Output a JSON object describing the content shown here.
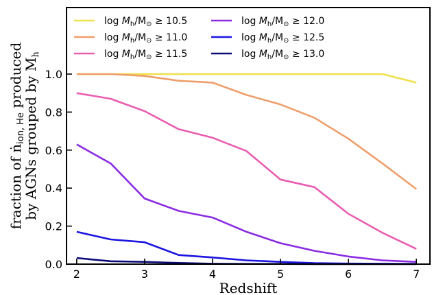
{
  "chart_data": {
    "type": "line",
    "xlabel": "Redshift",
    "ylabel_line1": "fraction of ṅ",
    "ylabel_sub": "ion, He",
    "ylabel_line1_end": " produced",
    "ylabel_line2": "by AGNs grouped by M",
    "ylabel_line2_sub": "h",
    "xlim": [
      1.85,
      7.2
    ],
    "ylim": [
      0,
      1.35
    ],
    "xticks": [
      2,
      3,
      4,
      5,
      6,
      7
    ],
    "xtick_labels": [
      "2",
      "3",
      "4",
      "5",
      "6",
      "7"
    ],
    "yticks": [
      0.0,
      0.2,
      0.4,
      0.6,
      0.8,
      1.0
    ],
    "ytick_labels": [
      "0.0",
      "0.2",
      "0.4",
      "0.6",
      "0.8",
      "1.0"
    ],
    "grid": false,
    "legend_position": "top",
    "x": [
      2,
      2.5,
      3,
      3.5,
      4,
      4.5,
      5,
      5.5,
      6,
      6.5,
      7
    ],
    "series": [
      {
        "name": "≥ 10.5",
        "color": "#f0e04a",
        "values": [
          1.0,
          1.0,
          1.0,
          1.0,
          1.0,
          1.0,
          1.0,
          1.0,
          1.0,
          1.0,
          0.955
        ]
      },
      {
        "name": "≥ 11.0",
        "color": "#ee9e6a",
        "values": [
          1.0,
          1.0,
          0.99,
          0.965,
          0.955,
          0.89,
          0.84,
          0.77,
          0.66,
          0.53,
          0.395
        ]
      },
      {
        "name": "≥ 11.5",
        "color": "#e95db0",
        "values": [
          0.9,
          0.87,
          0.805,
          0.71,
          0.665,
          0.595,
          0.445,
          0.405,
          0.265,
          0.165,
          0.08
        ]
      },
      {
        "name": "≥ 12.0",
        "color": "#8a2be2",
        "values": [
          0.63,
          0.53,
          0.345,
          0.28,
          0.245,
          0.17,
          0.11,
          0.07,
          0.04,
          0.02,
          0.012
        ]
      },
      {
        "name": "≥ 12.5",
        "color": "#1b14e0",
        "values": [
          0.17,
          0.13,
          0.115,
          0.048,
          0.035,
          0.02,
          0.012,
          0.005,
          0.003,
          0.002,
          0.001
        ]
      },
      {
        "name": "≥ 13.0",
        "color": "#0a0a78",
        "values": [
          0.032,
          0.015,
          0.012,
          0.006,
          0.002,
          0.001,
          0.001,
          0.0,
          0.0,
          0.0,
          0.0
        ]
      }
    ]
  }
}
